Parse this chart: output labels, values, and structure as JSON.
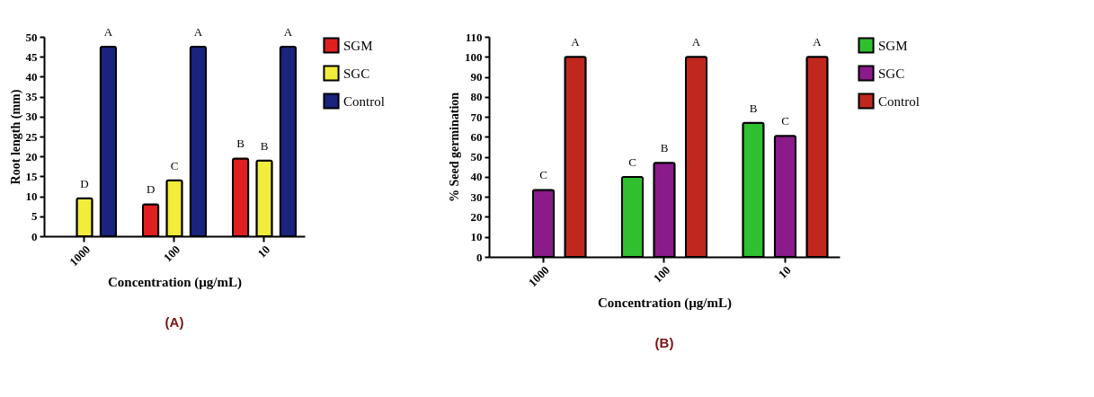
{
  "chart_data": [
    {
      "type": "bar",
      "xlabel": "Concentration (µg/mL)",
      "ylabel": "Root length (mm)",
      "categories": [
        "1000",
        "100",
        "10"
      ],
      "ylim": [
        0,
        50
      ],
      "yticks": [
        0,
        5,
        10,
        15,
        20,
        25,
        30,
        35,
        40,
        45,
        50
      ],
      "legend": "top right",
      "series": [
        {
          "name": "SGM",
          "color": "#e02020",
          "values": [
            null,
            8,
            19.5
          ],
          "value_labels": [
            null,
            "D",
            "B"
          ]
        },
        {
          "name": "SGC",
          "color": "#f2ec3a",
          "values": [
            9.5,
            14,
            19
          ],
          "value_labels": [
            "D",
            "C",
            "B"
          ]
        },
        {
          "name": "Control",
          "color": "#1a237e",
          "values": [
            47.5,
            47.5,
            47.5
          ],
          "value_labels": [
            "A",
            "A",
            "A"
          ]
        }
      ],
      "annotations": [
        "(A)"
      ]
    },
    {
      "type": "bar",
      "xlabel": "Concentration (µg/mL)",
      "ylabel": "% Seed germination",
      "categories": [
        "1000",
        "100",
        "10"
      ],
      "ylim": [
        0,
        110
      ],
      "yticks": [
        0,
        10,
        20,
        30,
        40,
        50,
        60,
        70,
        80,
        90,
        100,
        110
      ],
      "legend": "top right",
      "series": [
        {
          "name": "SGM",
          "color": "#2fbf2f",
          "values": [
            null,
            40,
            67
          ],
          "value_labels": [
            null,
            "C",
            "B"
          ]
        },
        {
          "name": "SGC",
          "color": "#8b1a8b",
          "values": [
            33.5,
            47,
            60.5
          ],
          "value_labels": [
            "C",
            "B",
            "C"
          ]
        },
        {
          "name": "Control",
          "color": "#c0281e",
          "values": [
            100,
            100,
            100
          ],
          "value_labels": [
            "A",
            "A",
            "A"
          ]
        }
      ],
      "annotations": [
        "(B)"
      ]
    }
  ]
}
